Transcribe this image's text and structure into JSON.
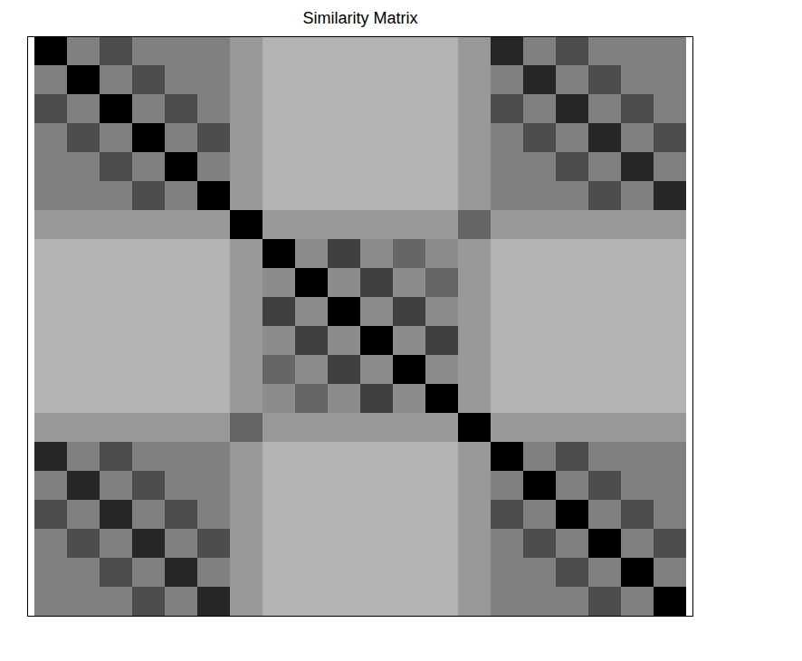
{
  "chart_data": {
    "type": "heatmap",
    "title": "Similarity Matrix",
    "tick_labels": false,
    "zlim": [
      0,
      1
    ],
    "cells": [
      [
        1,
        0.5,
        0.7,
        0.5,
        0.5,
        0.5,
        0.4,
        0.3,
        0.3,
        0.3,
        0.3,
        0.3,
        0.3,
        0.4,
        0.85,
        0.5,
        0.7,
        0.5,
        0.5,
        0.5
      ],
      [
        0.5,
        1,
        0.5,
        0.7,
        0.5,
        0.5,
        0.4,
        0.3,
        0.3,
        0.3,
        0.3,
        0.3,
        0.3,
        0.4,
        0.5,
        0.85,
        0.5,
        0.7,
        0.5,
        0.5
      ],
      [
        0.7,
        0.5,
        1,
        0.5,
        0.7,
        0.5,
        0.4,
        0.3,
        0.3,
        0.3,
        0.3,
        0.3,
        0.3,
        0.4,
        0.7,
        0.5,
        0.85,
        0.5,
        0.7,
        0.5
      ],
      [
        0.5,
        0.7,
        0.5,
        1,
        0.5,
        0.7,
        0.4,
        0.3,
        0.3,
        0.3,
        0.3,
        0.3,
        0.3,
        0.4,
        0.5,
        0.7,
        0.5,
        0.85,
        0.5,
        0.7
      ],
      [
        0.5,
        0.5,
        0.7,
        0.5,
        1,
        0.5,
        0.4,
        0.3,
        0.3,
        0.3,
        0.3,
        0.3,
        0.3,
        0.4,
        0.5,
        0.5,
        0.7,
        0.5,
        0.85,
        0.5
      ],
      [
        0.5,
        0.5,
        0.5,
        0.7,
        0.5,
        1,
        0.4,
        0.3,
        0.3,
        0.3,
        0.3,
        0.3,
        0.3,
        0.4,
        0.5,
        0.5,
        0.5,
        0.7,
        0.5,
        0.85
      ],
      [
        0.4,
        0.4,
        0.4,
        0.4,
        0.4,
        0.4,
        1,
        0.4,
        0.4,
        0.4,
        0.4,
        0.4,
        0.4,
        0.6,
        0.4,
        0.4,
        0.4,
        0.4,
        0.4,
        0.4
      ],
      [
        0.3,
        0.3,
        0.3,
        0.3,
        0.3,
        0.3,
        0.4,
        1,
        0.45,
        0.75,
        0.45,
        0.6,
        0.45,
        0.4,
        0.3,
        0.3,
        0.3,
        0.3,
        0.3,
        0.3
      ],
      [
        0.3,
        0.3,
        0.3,
        0.3,
        0.3,
        0.3,
        0.4,
        0.45,
        1,
        0.45,
        0.75,
        0.45,
        0.6,
        0.4,
        0.3,
        0.3,
        0.3,
        0.3,
        0.3,
        0.3
      ],
      [
        0.3,
        0.3,
        0.3,
        0.3,
        0.3,
        0.3,
        0.4,
        0.75,
        0.45,
        1,
        0.45,
        0.75,
        0.45,
        0.4,
        0.3,
        0.3,
        0.3,
        0.3,
        0.3,
        0.3
      ],
      [
        0.3,
        0.3,
        0.3,
        0.3,
        0.3,
        0.3,
        0.4,
        0.45,
        0.75,
        0.45,
        1,
        0.45,
        0.75,
        0.4,
        0.3,
        0.3,
        0.3,
        0.3,
        0.3,
        0.3
      ],
      [
        0.3,
        0.3,
        0.3,
        0.3,
        0.3,
        0.3,
        0.4,
        0.6,
        0.45,
        0.75,
        0.45,
        1,
        0.45,
        0.4,
        0.3,
        0.3,
        0.3,
        0.3,
        0.3,
        0.3
      ],
      [
        0.3,
        0.3,
        0.3,
        0.3,
        0.3,
        0.3,
        0.4,
        0.45,
        0.6,
        0.45,
        0.75,
        0.45,
        1,
        0.4,
        0.3,
        0.3,
        0.3,
        0.3,
        0.3,
        0.3
      ],
      [
        0.4,
        0.4,
        0.4,
        0.4,
        0.4,
        0.4,
        0.6,
        0.4,
        0.4,
        0.4,
        0.4,
        0.4,
        0.4,
        1,
        0.4,
        0.4,
        0.4,
        0.4,
        0.4,
        0.4
      ],
      [
        0.85,
        0.5,
        0.7,
        0.5,
        0.5,
        0.5,
        0.4,
        0.3,
        0.3,
        0.3,
        0.3,
        0.3,
        0.3,
        0.4,
        1,
        0.5,
        0.7,
        0.5,
        0.5,
        0.5
      ],
      [
        0.5,
        0.85,
        0.5,
        0.7,
        0.5,
        0.5,
        0.4,
        0.3,
        0.3,
        0.3,
        0.3,
        0.3,
        0.3,
        0.4,
        0.5,
        1,
        0.5,
        0.7,
        0.5,
        0.5
      ],
      [
        0.7,
        0.5,
        0.85,
        0.5,
        0.7,
        0.5,
        0.4,
        0.3,
        0.3,
        0.3,
        0.3,
        0.3,
        0.3,
        0.4,
        0.7,
        0.5,
        1,
        0.5,
        0.7,
        0.5
      ],
      [
        0.5,
        0.7,
        0.5,
        0.85,
        0.5,
        0.7,
        0.4,
        0.3,
        0.3,
        0.3,
        0.3,
        0.3,
        0.3,
        0.4,
        0.5,
        0.7,
        0.5,
        1,
        0.5,
        0.7
      ],
      [
        0.5,
        0.5,
        0.7,
        0.5,
        0.85,
        0.5,
        0.4,
        0.3,
        0.3,
        0.3,
        0.3,
        0.3,
        0.3,
        0.4,
        0.5,
        0.5,
        0.7,
        0.5,
        1,
        0.5
      ],
      [
        0.5,
        0.5,
        0.5,
        0.7,
        0.5,
        0.85,
        0.4,
        0.3,
        0.3,
        0.3,
        0.3,
        0.3,
        0.3,
        0.4,
        0.5,
        0.5,
        0.5,
        0.7,
        0.5,
        1
      ]
    ]
  }
}
